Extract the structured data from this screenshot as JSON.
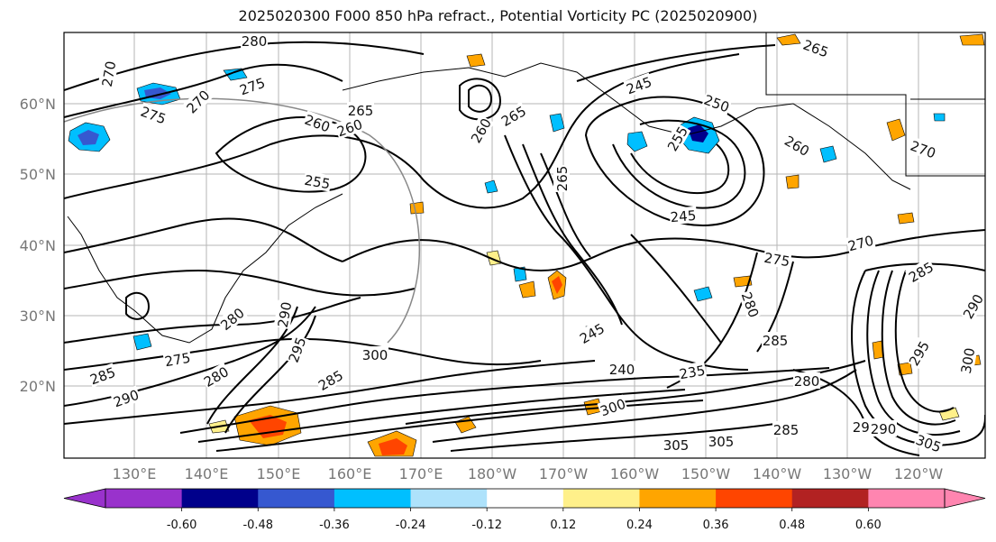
{
  "title": "2025020300 F000 850 hPa refract., Potential Vorticity PC (2025020900)",
  "lat_ticks": [
    "60°N",
    "50°N",
    "40°N",
    "30°N",
    "20°N"
  ],
  "lon_ticks": [
    "130°E",
    "140°E",
    "150°E",
    "160°E",
    "170°E",
    "180°W",
    "170°W",
    "160°W",
    "150°W",
    "140°W",
    "130°W",
    "120°W"
  ],
  "colorbar": {
    "colors": [
      "#9932cc",
      "#00008b",
      "#3658d0",
      "#00bfff",
      "#aee2fb",
      "#ffffff",
      "#fff08a",
      "#ffa500",
      "#ff4500",
      "#b22222",
      "#ff85b0"
    ],
    "labels": [
      "-0.60",
      "-0.48",
      "-0.36",
      "-0.24",
      "-0.12",
      "0.12",
      "0.24",
      "0.36",
      "0.48",
      "0.60"
    ]
  },
  "contour_labels": [
    "280",
    "270",
    "275",
    "270",
    "275",
    "260",
    "265",
    "255",
    "260",
    "260",
    "265",
    "245",
    "250",
    "255",
    "260",
    "245",
    "265",
    "270",
    "265",
    "270",
    "275",
    "280",
    "285",
    "290",
    "295",
    "300",
    "285",
    "285",
    "290",
    "280",
    "275",
    "280",
    "235",
    "240",
    "245",
    "305",
    "300",
    "305",
    "295",
    "305",
    "300",
    "285",
    "290",
    "295",
    "280",
    "285",
    "290"
  ],
  "shading_colors": {
    "neg_light": "#00bfff",
    "neg_mid": "#3658d0",
    "neg_dark": "#00008b",
    "pos_light": "#ffa500",
    "pos_pale": "#fff08a",
    "pos_dark": "#ff4500"
  }
}
